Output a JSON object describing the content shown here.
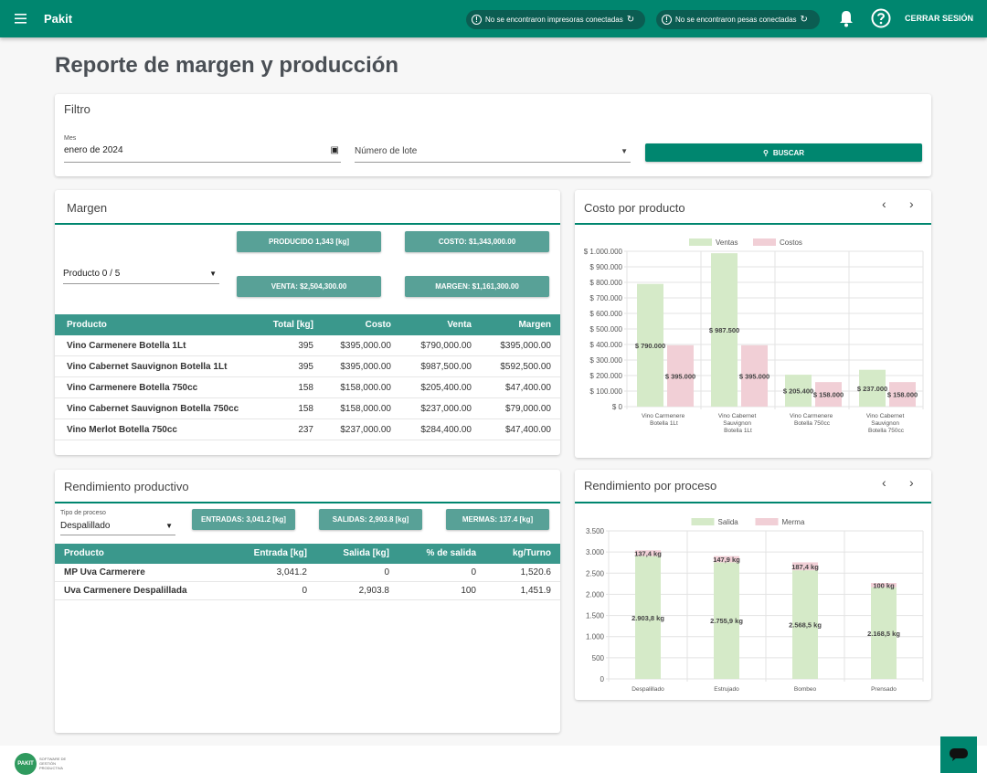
{
  "header": {
    "brand": "Pakit",
    "printer_status": "No se encontraron impresoras conectadas",
    "scale_status": "No se encontraron pesas conectadas",
    "logout": "CERRAR SESIÓN"
  },
  "page_title": "Reporte de margen y producción",
  "filter": {
    "title": "Filtro",
    "month_label": "Mes",
    "month_value": "enero de 2024",
    "lot_placeholder": "Número de lote",
    "search": "BUSCAR"
  },
  "margin": {
    "title": "Margen",
    "product_select": "Producto 0 / 5",
    "summary": [
      "PRODUCIDO 1,343 [kg]",
      "COSTO: $1,343,000.00",
      "VENTA: $2,504,300.00",
      "MARGEN: $1,161,300.00"
    ],
    "table": {
      "columns": [
        "Producto",
        "Total [kg]",
        "Costo",
        "Venta",
        "Margen"
      ],
      "rows": [
        [
          "Vino Carmenere Botella 1Lt",
          "395",
          "$395,000.00",
          "$790,000.00",
          "$395,000.00"
        ],
        [
          "Vino Cabernet Sauvignon Botella 1Lt",
          "395",
          "$395,000.00",
          "$987,500.00",
          "$592,500.00"
        ],
        [
          "Vino Carmenere Botella 750cc",
          "158",
          "$158,000.00",
          "$205,400.00",
          "$47,400.00"
        ],
        [
          "Vino Cabernet Sauvignon Botella 750cc",
          "158",
          "$158,000.00",
          "$237,000.00",
          "$79,000.00"
        ],
        [
          "Vino Merlot Botella 750cc",
          "237",
          "$237,000.00",
          "$284,400.00",
          "$47,400.00"
        ]
      ]
    }
  },
  "yield": {
    "title": "Rendimiento productivo",
    "process_label": "Tipo de proceso",
    "process_value": "Despalillado",
    "summary": [
      "ENTRADAS: 3,041.2 [kg]",
      "SALIDAS: 2,903.8 [kg]",
      "MERMAS: 137.4 [kg]"
    ],
    "table": {
      "columns": [
        "Producto",
        "Entrada [kg]",
        "Salida [kg]",
        "% de salida",
        "kg/Turno"
      ],
      "rows": [
        [
          "MP Uva Carmerere",
          "3,041.2",
          "0",
          "0",
          "1,520.6"
        ],
        [
          "Uva Carmenere Despalillada",
          "0",
          "2,903.8",
          "100",
          "1,451.9"
        ]
      ]
    }
  },
  "footer": {
    "logo_text": "PAKIT",
    "tagline": "SOFTWARE DE GESTIÓN PRODUCTIVA"
  },
  "chart_data": [
    {
      "type": "bar",
      "title": "Costo por producto",
      "categories": [
        "Vino Carmenere Botella 1Lt",
        "Vino Cabernet Sauvignon Botella 1Lt",
        "Vino Carmenere Botella 750cc",
        "Vino Cabernet Sauvignon Botella 750cc"
      ],
      "series": [
        {
          "name": "Ventas",
          "color": "#d5eac8",
          "values": [
            790000,
            987500,
            205400,
            237000
          ],
          "value_labels": [
            "$ 790.000",
            "$ 987.500",
            "$ 205.400",
            "$ 237.000"
          ]
        },
        {
          "name": "Costos",
          "color": "#f1cfd6",
          "values": [
            395000,
            395000,
            158000,
            158000
          ],
          "value_labels": [
            "$ 395.000",
            "$ 395.000",
            "$ 158.000",
            "$ 158.000"
          ]
        }
      ],
      "ylim": [
        0,
        1000000
      ],
      "yticks": [
        {
          "value": 0,
          "label": "$ 0"
        },
        {
          "value": 100000,
          "label": "$ 100.000"
        },
        {
          "value": 200000,
          "label": "$ 200.000"
        },
        {
          "value": 300000,
          "label": "$ 300.000"
        },
        {
          "value": 400000,
          "label": "$ 400.000"
        },
        {
          "value": 500000,
          "label": "$ 500.000"
        },
        {
          "value": 600000,
          "label": "$ 600.000"
        },
        {
          "value": 700000,
          "label": "$ 700.000"
        },
        {
          "value": 800000,
          "label": "$ 800.000"
        },
        {
          "value": 900000,
          "label": "$ 900.000"
        },
        {
          "value": 1000000,
          "label": "$ 1.000.000"
        }
      ],
      "grid": true,
      "legend": "top"
    },
    {
      "type": "stacked_bar",
      "title": "Rendimiento por proceso",
      "categories": [
        "Despalillado",
        "Estrujado",
        "Bombeo",
        "Prensado"
      ],
      "series": [
        {
          "name": "Salida",
          "color": "#d5eac8",
          "values": [
            2903.8,
            2755.9,
            2568.5,
            2168.5
          ],
          "value_labels": [
            "2.903,8 kg",
            "2.755,9 kg",
            "2.568,5 kg",
            "2.168,5 kg"
          ]
        },
        {
          "name": "Merma",
          "color": "#f1cfd6",
          "values": [
            137.4,
            147.9,
            187.4,
            100
          ],
          "value_labels": [
            "137,4 kg",
            "147,9 kg",
            "187,4 kg",
            "100 kg"
          ]
        }
      ],
      "ylim": [
        0,
        3500
      ],
      "yticks": [
        0,
        500,
        {
          "value": 1000,
          "label": "1.000"
        },
        {
          "value": 1500,
          "label": "1.500"
        },
        {
          "value": 2000,
          "label": "2.000"
        },
        {
          "value": 2500,
          "label": "2.500"
        },
        {
          "value": 3000,
          "label": "3.000"
        },
        {
          "value": 3500,
          "label": "3.500"
        }
      ],
      "grid": true,
      "legend": "top"
    }
  ]
}
